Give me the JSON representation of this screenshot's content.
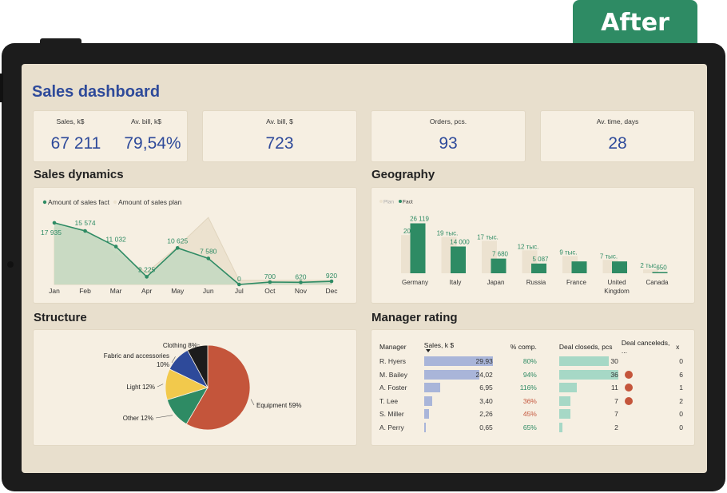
{
  "banner": {
    "label": "After"
  },
  "dashboard": {
    "title": "Sales dashboard"
  },
  "kpi": {
    "sales_label": "Sales, k$",
    "sales_value": "67 211",
    "avbill_label": "Av. bill, k$",
    "avbill_value": "79,54%",
    "avbill2_label": "Av. bill, $",
    "avbill2_value": "723",
    "orders_label": "Orders, pcs.",
    "orders_value": "93",
    "avtime_label": "Av. time, days",
    "avtime_value": "28"
  },
  "sections": {
    "dynamics": "Sales dynamics",
    "geography": "Geography",
    "structure": "Structure",
    "manager": "Manager rating"
  },
  "colors": {
    "fact": "#2e8b64",
    "plan": "#ece2cf",
    "area_fact": "#c5d9c1",
    "accent": "#2e4a9a",
    "bar_blue": "#a9b5d9",
    "bar_green": "#a6d8c6",
    "dot": "#c4553b",
    "neg": "#c4553b"
  },
  "chart_data": [
    {
      "type": "area",
      "title": "Sales dynamics",
      "legend_position": "top-left",
      "categories": [
        "Jan",
        "Feb",
        "Mar",
        "Apr",
        "May",
        "Jun",
        "Jul",
        "Oct",
        "Nov",
        "Dec"
      ],
      "series": [
        {
          "name": "Amount of sales fact",
          "values": [
            17935,
            15574,
            11032,
            2225,
            10625,
            7580,
            0,
            700,
            620,
            920
          ],
          "labels": [
            "17 935",
            "15 574",
            "11 032",
            "2 225",
            "10 625",
            "7 580",
            "0",
            "700",
            "620",
            "920"
          ]
        },
        {
          "name": "Amount of sales plan",
          "values": [
            16500,
            16000,
            9000,
            3500,
            11000,
            19500,
            1200,
            1200,
            1200,
            1200
          ]
        }
      ],
      "ylim": [
        0,
        20000
      ]
    },
    {
      "type": "bar",
      "title": "Geography",
      "legend_position": "top-left",
      "categories": [
        "Germany",
        "Italy",
        "Japan",
        "Russia",
        "France",
        "United Kingdom",
        "Canada"
      ],
      "series": [
        {
          "name": "Plan",
          "values": [
            20,
            19,
            17,
            12,
            9,
            7,
            2
          ],
          "labels": [
            "20",
            "19 тыс.",
            "17 тыс.",
            "12 тыс.",
            "9 тыс.",
            "7 тыс.",
            "2 тыс."
          ]
        },
        {
          "name": "Fact",
          "values": [
            26.119,
            14.0,
            7.68,
            5.087,
            6.2,
            6.2,
            0.65
          ],
          "labels": [
            "26 119",
            "14 000",
            "7 680",
            "5 087",
            "",
            "",
            "650"
          ]
        }
      ],
      "ylim": [
        0,
        28
      ]
    },
    {
      "type": "pie",
      "title": "Structure",
      "slices": [
        {
          "label": "Equipment",
          "value": 59,
          "text": "Equipment 59%",
          "color": "#c4553b"
        },
        {
          "label": "Other",
          "value": 12,
          "text": "Other 12%",
          "color": "#2e8b64"
        },
        {
          "label": "Light",
          "value": 12,
          "text": "Light 12%",
          "color": "#f2c94c"
        },
        {
          "label": "Fabric and accessories",
          "value": 10,
          "text": "Fabric and accessories 10%",
          "color": "#2e4a9a"
        },
        {
          "label": "Clothing",
          "value": 8,
          "text": "Clothing 8%",
          "color": "#1c1c1c"
        }
      ]
    }
  ],
  "manager_table": {
    "headers": [
      "Manager",
      "Sales, k $",
      "% comp.",
      "Deal closeds, pcs",
      "Deal canceleds, ...",
      "x"
    ],
    "rows": [
      {
        "name": "R. Hyers",
        "sales": "29,93",
        "sales_v": 29.93,
        "comp": "80%",
        "comp_ok": true,
        "closed": "30",
        "closed_v": 30,
        "dot": false,
        "canceled": "0"
      },
      {
        "name": "M. Bailey",
        "sales": "24,02",
        "sales_v": 24.02,
        "comp": "94%",
        "comp_ok": true,
        "closed": "36",
        "closed_v": 36,
        "dot": true,
        "canceled": "6"
      },
      {
        "name": "A. Foster",
        "sales": "6,95",
        "sales_v": 6.95,
        "comp": "116%",
        "comp_ok": true,
        "closed": "11",
        "closed_v": 11,
        "dot": true,
        "canceled": "1"
      },
      {
        "name": "T. Lee",
        "sales": "3,40",
        "sales_v": 3.4,
        "comp": "36%",
        "comp_ok": false,
        "closed": "7",
        "closed_v": 7,
        "dot": true,
        "canceled": "2"
      },
      {
        "name": "S. Miller",
        "sales": "2,26",
        "sales_v": 2.26,
        "comp": "45%",
        "comp_ok": false,
        "closed": "7",
        "closed_v": 7,
        "dot": false,
        "canceled": "0"
      },
      {
        "name": "A. Perry",
        "sales": "0,65",
        "sales_v": 0.65,
        "comp": "65%",
        "comp_ok": true,
        "closed": "2",
        "closed_v": 2,
        "dot": false,
        "canceled": "0"
      }
    ]
  }
}
